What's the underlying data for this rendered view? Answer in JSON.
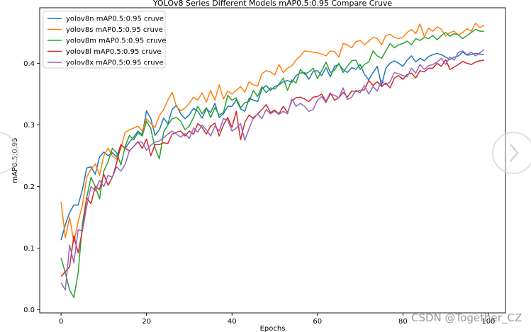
{
  "watermark": "CSDN @Together_CZ",
  "chart_data": {
    "type": "line",
    "title": "YOLOv8 Series Different Models mAP0.5:0.95 Compare Cruve",
    "xlabel": "Epochs",
    "ylabel": "mAP0.5:0.95",
    "xlim": [
      -5,
      104
    ],
    "ylim": [
      -0.005,
      0.49
    ],
    "xticks": [
      0,
      20,
      40,
      60,
      80,
      100
    ],
    "yticks": [
      0.0,
      0.1,
      0.2,
      0.3,
      0.4
    ],
    "legend_position": "upper-left",
    "grid": false,
    "series": [
      {
        "name": "yolov8n mAP0.5:0.95 cruve",
        "color": "#1f77b4",
        "values": [
          0.113,
          0.138,
          0.158,
          0.17,
          0.17,
          0.195,
          0.23,
          0.232,
          0.22,
          0.248,
          0.256,
          0.25,
          0.255,
          0.248,
          0.268,
          0.262,
          0.272,
          0.28,
          0.29,
          0.284,
          0.323,
          0.31,
          0.283,
          0.292,
          0.311,
          0.302,
          0.325,
          0.332,
          0.318,
          0.31,
          0.316,
          0.327,
          0.322,
          0.311,
          0.326,
          0.32,
          0.335,
          0.312,
          0.318,
          0.33,
          0.33,
          0.341,
          0.326,
          0.322,
          0.343,
          0.34,
          0.338,
          0.358,
          0.364,
          0.356,
          0.362,
          0.365,
          0.37,
          0.372,
          0.369,
          0.38,
          0.384,
          0.385,
          0.374,
          0.387,
          0.388,
          0.38,
          0.393,
          0.378,
          0.395,
          0.398,
          0.39,
          0.385,
          0.393,
          0.39,
          0.398,
          0.382,
          0.373,
          0.385,
          0.395,
          0.364,
          0.392,
          0.4,
          0.404,
          0.4,
          0.395,
          0.405,
          0.412,
          0.402,
          0.408,
          0.404,
          0.411,
          0.414,
          0.416,
          0.414,
          0.41,
          0.406,
          0.41,
          0.412,
          0.418,
          0.413,
          0.414,
          0.416,
          0.415,
          0.414
        ]
      },
      {
        "name": "yolov8s mAP0.5:0.95 cruve",
        "color": "#ff7f0e",
        "values": [
          0.175,
          0.117,
          0.15,
          0.11,
          0.143,
          0.17,
          0.215,
          0.228,
          0.237,
          0.218,
          0.25,
          0.262,
          0.25,
          0.244,
          0.262,
          0.288,
          0.292,
          0.295,
          0.298,
          0.29,
          0.31,
          0.302,
          0.296,
          0.315,
          0.325,
          0.34,
          0.353,
          0.33,
          0.323,
          0.327,
          0.335,
          0.345,
          0.34,
          0.352,
          0.337,
          0.356,
          0.34,
          0.365,
          0.342,
          0.355,
          0.35,
          0.356,
          0.362,
          0.353,
          0.37,
          0.365,
          0.363,
          0.383,
          0.388,
          0.386,
          0.381,
          0.398,
          0.385,
          0.392,
          0.396,
          0.405,
          0.412,
          0.42,
          0.419,
          0.418,
          0.417,
          0.415,
          0.412,
          0.42,
          0.419,
          0.41,
          0.432,
          0.43,
          0.425,
          0.435,
          0.437,
          0.43,
          0.436,
          0.442,
          0.44,
          0.43,
          0.445,
          0.447,
          0.442,
          0.44,
          0.442,
          0.45,
          0.455,
          0.448,
          0.464,
          0.443,
          0.457,
          0.452,
          0.459,
          0.455,
          0.444,
          0.45,
          0.452,
          0.446,
          0.45,
          0.456,
          0.452,
          0.465,
          0.458,
          0.462
        ]
      },
      {
        "name": "yolov8m mAP0.5:0.95 cruve",
        "color": "#2ca02c",
        "values": [
          0.084,
          0.06,
          0.032,
          0.02,
          0.06,
          0.14,
          0.182,
          0.215,
          0.2,
          0.18,
          0.225,
          0.24,
          0.262,
          0.255,
          0.235,
          0.265,
          0.283,
          0.276,
          0.287,
          0.282,
          0.306,
          0.294,
          0.262,
          0.245,
          0.288,
          0.3,
          0.31,
          0.312,
          0.306,
          0.292,
          0.298,
          0.312,
          0.33,
          0.318,
          0.328,
          0.312,
          0.328,
          0.316,
          0.32,
          0.348,
          0.34,
          0.344,
          0.328,
          0.336,
          0.338,
          0.356,
          0.346,
          0.362,
          0.352,
          0.36,
          0.358,
          0.366,
          0.376,
          0.356,
          0.373,
          0.368,
          0.39,
          0.382,
          0.386,
          0.392,
          0.375,
          0.388,
          0.402,
          0.385,
          0.389,
          0.4,
          0.385,
          0.395,
          0.404,
          0.405,
          0.39,
          0.398,
          0.402,
          0.42,
          0.412,
          0.408,
          0.42,
          0.432,
          0.425,
          0.43,
          0.432,
          0.436,
          0.43,
          0.44,
          0.437,
          0.442,
          0.44,
          0.445,
          0.438,
          0.445,
          0.45,
          0.444,
          0.448,
          0.446,
          0.44,
          0.445,
          0.45,
          0.455,
          0.452,
          0.452
        ]
      },
      {
        "name": "yolov8l mAP0.5:0.95 cruve",
        "color": "#d62728",
        "values": [
          0.054,
          0.062,
          0.07,
          0.12,
          0.092,
          0.13,
          0.182,
          0.172,
          0.2,
          0.195,
          0.22,
          0.202,
          0.215,
          0.238,
          0.268,
          0.262,
          0.258,
          0.265,
          0.273,
          0.262,
          0.277,
          0.25,
          0.268,
          0.268,
          0.271,
          0.27,
          0.285,
          0.288,
          0.29,
          0.282,
          0.29,
          0.285,
          0.302,
          0.296,
          0.285,
          0.298,
          0.303,
          0.282,
          0.3,
          0.312,
          0.296,
          0.322,
          0.276,
          0.304,
          0.316,
          0.31,
          0.318,
          0.325,
          0.333,
          0.32,
          0.324,
          0.318,
          0.33,
          0.32,
          0.339,
          0.344,
          0.345,
          0.342,
          0.338,
          0.345,
          0.346,
          0.35,
          0.338,
          0.352,
          0.34,
          0.344,
          0.353,
          0.345,
          0.355,
          0.354,
          0.356,
          0.357,
          0.372,
          0.364,
          0.37,
          0.362,
          0.368,
          0.36,
          0.376,
          0.38,
          0.374,
          0.382,
          0.384,
          0.376,
          0.388,
          0.386,
          0.392,
          0.392,
          0.4,
          0.395,
          0.406,
          0.39,
          0.394,
          0.398,
          0.403,
          0.4,
          0.398,
          0.402,
          0.404,
          0.405
        ]
      },
      {
        "name": "yolov8x mAP0.5:0.95 cruve",
        "color": "#9467bd",
        "values": [
          0.044,
          0.032,
          0.105,
          0.076,
          0.13,
          0.128,
          0.168,
          0.2,
          0.193,
          0.21,
          0.2,
          0.218,
          0.215,
          0.232,
          0.225,
          0.236,
          0.258,
          0.265,
          0.272,
          0.272,
          0.259,
          0.267,
          0.272,
          0.274,
          0.279,
          0.285,
          0.29,
          0.285,
          0.28,
          0.286,
          0.278,
          0.295,
          0.288,
          0.3,
          0.292,
          0.282,
          0.298,
          0.29,
          0.31,
          0.308,
          0.29,
          0.295,
          0.302,
          0.275,
          0.294,
          0.312,
          0.318,
          0.31,
          0.325,
          0.318,
          0.322,
          0.317,
          0.322,
          0.318,
          0.342,
          0.33,
          0.335,
          0.33,
          0.322,
          0.325,
          0.34,
          0.346,
          0.336,
          0.35,
          0.348,
          0.344,
          0.36,
          0.341,
          0.345,
          0.356,
          0.352,
          0.364,
          0.35,
          0.362,
          0.355,
          0.372,
          0.365,
          0.37,
          0.385,
          0.383,
          0.38,
          0.378,
          0.392,
          0.384,
          0.398,
          0.39,
          0.396,
          0.398,
          0.402,
          0.408,
          0.398,
          0.41,
          0.405,
          0.418,
          0.42,
          0.414,
          0.418,
          0.412,
          0.417,
          0.422
        ]
      }
    ]
  }
}
